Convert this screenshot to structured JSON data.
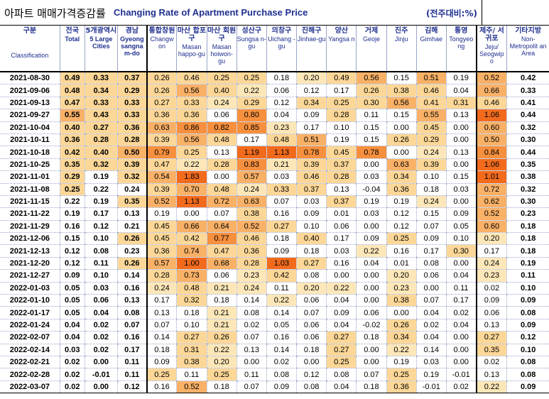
{
  "title": {
    "korean": "아파트 매매가격증감률",
    "english": "Changing Rate of Apartment Purchase Price",
    "unit": "(전주대비:%)"
  },
  "chart_data": {
    "type": "table",
    "columns": [
      {
        "kr": "구분",
        "en": "Classification"
      },
      {
        "kr": "전국",
        "en": "Total"
      },
      {
        "kr": "5개광역시",
        "en": "5 Large Cities"
      },
      {
        "kr": "경남",
        "en": "Gyeong sangna m-do"
      },
      {
        "kr": "통합창원",
        "en": "Changw on"
      },
      {
        "kr": "마산 합포구",
        "en": "Masan happo-gu"
      },
      {
        "kr": "마산 회원구",
        "en": "Masan hoiwon-gu"
      },
      {
        "kr": "성산구",
        "en": "Sungsa n-gu"
      },
      {
        "kr": "의창구",
        "en": "Uichang -gu"
      },
      {
        "kr": "진해구",
        "en": "Jinhae-gu"
      },
      {
        "kr": "양산",
        "en": "Yangsa n"
      },
      {
        "kr": "거제",
        "en": "Geoje"
      },
      {
        "kr": "진주",
        "en": "Jinju"
      },
      {
        "kr": "김해",
        "en": "Gimhae"
      },
      {
        "kr": "통영",
        "en": "Tongyeo ng"
      },
      {
        "kr": "제주/ 서귀포",
        "en": "Jeju/ Seogwip o"
      },
      {
        "kr": "기타지방",
        "en": "Non- Metropolit an Area"
      }
    ],
    "rows": [
      {
        "date": "2021-08-30",
        "values": [
          "0.49",
          "0.33",
          "0.37",
          "0.26",
          "0.46",
          "0.25",
          "0.25",
          "0.18",
          "0.20",
          "0.49",
          "0.56",
          "0.15",
          "0.51",
          "0.19",
          "0.52",
          "0.42"
        ]
      },
      {
        "date": "2021-09-06",
        "values": [
          "0.48",
          "0.34",
          "0.29",
          "0.26",
          "0.56",
          "0.40",
          "0.22",
          "0.06",
          "0.12",
          "0.17",
          "0.26",
          "0.38",
          "0.46",
          "0.04",
          "0.66",
          "0.33"
        ]
      },
      {
        "date": "2021-09-13",
        "values": [
          "0.47",
          "0.33",
          "0.33",
          "0.27",
          "0.33",
          "0.24",
          "0.29",
          "0.12",
          "0.34",
          "0.25",
          "0.30",
          "0.56",
          "0.41",
          "0.31",
          "0.46",
          "0.41"
        ]
      },
      {
        "date": "2021-09-27",
        "values": [
          "0.55",
          "0.43",
          "0.33",
          "0.36",
          "0.36",
          "0.06",
          "0.80",
          "0.04",
          "0.09",
          "0.28",
          "0.11",
          "0.15",
          "0.55",
          "0.13",
          "1.06",
          "0.44"
        ]
      },
      {
        "date": "2021-10-04",
        "values": [
          "0.40",
          "0.27",
          "0.36",
          "0.63",
          "0.86",
          "0.82",
          "0.85",
          "0.23",
          "0.17",
          "0.10",
          "0.15",
          "0.00",
          "0.45",
          "0.00",
          "0.60",
          "0.32"
        ]
      },
      {
        "date": "2021-10-11",
        "values": [
          "0.36",
          "0.28",
          "0.28",
          "0.39",
          "0.56",
          "0.48",
          "0.17",
          "0.48",
          "0.51",
          "0.19",
          "0.15",
          "0.26",
          "0.29",
          "0.00",
          "0.50",
          "0.30"
        ]
      },
      {
        "date": "2021-10-18",
        "values": [
          "0.42",
          "0.40",
          "0.50",
          "0.79",
          "0.25",
          "0.13",
          "1.19",
          "1.13",
          "0.78",
          "0.45",
          "0.78",
          "0.00",
          "0.24",
          "0.13",
          "0.84",
          "0.44"
        ]
      },
      {
        "date": "2021-10-25",
        "values": [
          "0.35",
          "0.32",
          "0.39",
          "0.47",
          "0.22",
          "0.28",
          "0.83",
          "0.21",
          "0.39",
          "0.37",
          "0.00",
          "0.63",
          "0.39",
          "0.00",
          "1.06",
          "0.35"
        ]
      },
      {
        "date": "2021-11-01",
        "values": [
          "0.29",
          "0.19",
          "0.32",
          "0.54",
          "1.83",
          "0.00",
          "0.57",
          "0.03",
          "0.46",
          "0.28",
          "0.03",
          "0.34",
          "0.10",
          "0.15",
          "1.01",
          "0.38"
        ]
      },
      {
        "date": "2021-11-08",
        "values": [
          "0.25",
          "0.22",
          "0.24",
          "0.39",
          "0.70",
          "0.48",
          "0.24",
          "0.33",
          "0.37",
          "0.13",
          "-0.04",
          "0.36",
          "0.18",
          "0.03",
          "0.72",
          "0.32"
        ]
      },
      {
        "date": "2021-11-15",
        "values": [
          "0.22",
          "0.19",
          "0.35",
          "0.52",
          "1.13",
          "0.72",
          "0.63",
          "0.07",
          "0.03",
          "0.37",
          "0.19",
          "0.19",
          "0.24",
          "0.00",
          "0.62",
          "0.30"
        ]
      },
      {
        "date": "2021-11-22",
        "values": [
          "0.19",
          "0.17",
          "0.13",
          "0.19",
          "0.00",
          "0.07",
          "0.38",
          "0.16",
          "0.09",
          "0.01",
          "0.03",
          "0.12",
          "0.15",
          "0.09",
          "0.52",
          "0.23"
        ]
      },
      {
        "date": "2021-11-29",
        "values": [
          "0.16",
          "0.12",
          "0.21",
          "0.45",
          "0.66",
          "0.64",
          "0.52",
          "0.27",
          "0.10",
          "0.06",
          "0.00",
          "0.12",
          "0.07",
          "0.05",
          "0.60",
          "0.18"
        ]
      },
      {
        "date": "2021-12-06",
        "values": [
          "0.15",
          "0.10",
          "0.26",
          "0.45",
          "0.42",
          "0.77",
          "0.46",
          "0.18",
          "0.40",
          "0.17",
          "0.09",
          "0.25",
          "0.09",
          "0.10",
          "0.20",
          "0.18"
        ]
      },
      {
        "date": "2021-12-13",
        "values": [
          "0.12",
          "0.08",
          "0.23",
          "0.36",
          "0.74",
          "0.47",
          "0.36",
          "0.09",
          "0.18",
          "0.03",
          "0.22",
          "0.16",
          "0.17",
          "0.30",
          "0.17",
          "0.18"
        ]
      },
      {
        "date": "2021-12-20",
        "values": [
          "0.12",
          "0.11",
          "0.26",
          "0.57",
          "1.00",
          "0.68",
          "0.28",
          "1.03",
          "0.27",
          "0.16",
          "0.04",
          "0.01",
          "0.08",
          "0.00",
          "0.24",
          "0.19"
        ]
      },
      {
        "date": "2021-12-27",
        "values": [
          "0.09",
          "0.10",
          "0.14",
          "0.28",
          "0.73",
          "0.06",
          "0.23",
          "0.42",
          "0.08",
          "0.00",
          "0.00",
          "0.20",
          "0.06",
          "0.04",
          "0.23",
          "0.11"
        ]
      },
      {
        "date": "2022-01-03",
        "values": [
          "0.05",
          "0.03",
          "0.16",
          "0.24",
          "0.48",
          "0.21",
          "0.24",
          "0.11",
          "0.20",
          "0.22",
          "0.00",
          "0.23",
          "0.00",
          "0.11",
          "0.02",
          "0.10"
        ]
      },
      {
        "date": "2022-01-10",
        "values": [
          "0.05",
          "0.06",
          "0.13",
          "0.17",
          "0.32",
          "0.18",
          "0.14",
          "0.22",
          "0.06",
          "0.04",
          "0.00",
          "0.38",
          "0.07",
          "0.17",
          "0.09",
          "0.09"
        ]
      },
      {
        "date": "2022-01-17",
        "values": [
          "0.05",
          "0.04",
          "0.08",
          "0.13",
          "0.18",
          "0.21",
          "0.08",
          "0.14",
          "0.07",
          "0.09",
          "0.06",
          "0.00",
          "0.04",
          "0.02",
          "0.06",
          "0.08"
        ]
      },
      {
        "date": "2022-01-24",
        "values": [
          "0.04",
          "0.02",
          "0.07",
          "0.07",
          "0.10",
          "0.21",
          "0.02",
          "0.05",
          "0.06",
          "0.04",
          "-0.02",
          "0.26",
          "0.02",
          "0.04",
          "0.13",
          "0.09"
        ]
      },
      {
        "date": "2022-02-07",
        "values": [
          "0.04",
          "0.02",
          "0.16",
          "0.14",
          "0.27",
          "0.26",
          "0.07",
          "0.16",
          "0.06",
          "0.27",
          "0.18",
          "0.34",
          "0.04",
          "0.00",
          "0.27",
          "0.12"
        ]
      },
      {
        "date": "2022-02-14",
        "values": [
          "0.03",
          "0.02",
          "0.17",
          "0.18",
          "0.31",
          "0.22",
          "0.13",
          "0.14",
          "0.18",
          "0.27",
          "0.00",
          "0.22",
          "0.14",
          "0.00",
          "0.35",
          "0.10"
        ]
      },
      {
        "date": "2022-02-21",
        "values": [
          "0.02",
          "0.00",
          "0.11",
          "0.09",
          "0.38",
          "0.20",
          "0.00",
          "0.02",
          "0.00",
          "0.25",
          "0.00",
          "0.19",
          "0.03",
          "0.00",
          "0.02",
          "0.08"
        ]
      },
      {
        "date": "2022-02-28",
        "values": [
          "0.02",
          "-0.01",
          "0.11",
          "0.25",
          "0.11",
          "0.25",
          "0.11",
          "0.08",
          "0.12",
          "0.08",
          "0.07",
          "0.25",
          "0.19",
          "-0.01",
          "0.13",
          "0.08"
        ]
      },
      {
        "date": "2022-03-07",
        "values": [
          "0.02",
          "0.00",
          "0.12",
          "0.16",
          "0.52",
          "0.18",
          "0.07",
          "0.09",
          "0.08",
          "0.04",
          "0.18",
          "0.36",
          "-0.01",
          "0.02",
          "0.22",
          "0.09"
        ]
      }
    ],
    "color_scale": [
      {
        "min": 1.0,
        "color": "#f26b1d"
      },
      {
        "min": 0.75,
        "color": "#f7903e"
      },
      {
        "min": 0.5,
        "color": "#f9b167"
      },
      {
        "min": 0.25,
        "color": "#fcd797"
      },
      {
        "min": 0.2,
        "color": "#fde7b8"
      }
    ]
  }
}
